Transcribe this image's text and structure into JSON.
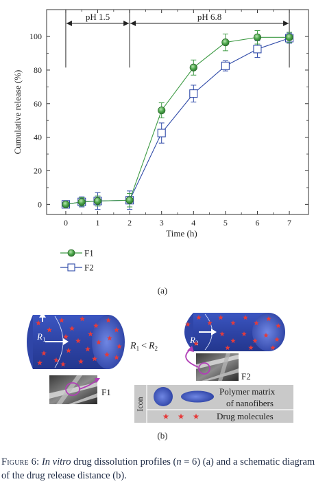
{
  "panel_a_label": "(a)",
  "panel_b_label": "(b)",
  "chart_data": {
    "type": "line",
    "title": "",
    "xlabel": "Time (h)",
    "ylabel": "Cumulative release (%)",
    "xlim": [
      -0.6,
      7.6
    ],
    "ylim": [
      -6,
      116
    ],
    "x_ticks": [
      "0",
      "1",
      "2",
      "3",
      "4",
      "5",
      "6",
      "7"
    ],
    "y_ticks": [
      "0",
      "20",
      "40",
      "60",
      "80",
      "100"
    ],
    "grid": false,
    "legend_position": "bottom-left",
    "phase_annotations": [
      {
        "label": "pH 1.5",
        "from": 0,
        "to": 2
      },
      {
        "label": "pH 6.8",
        "from": 2,
        "to": 7
      }
    ],
    "x": [
      0,
      0.5,
      1,
      2,
      3,
      4,
      5,
      6,
      7
    ],
    "series": [
      {
        "name": "F1",
        "marker": "circle",
        "color": "#3f9b45",
        "values": [
          0,
          1.5,
          2,
          2.5,
          56,
          81.5,
          96.5,
          99.5,
          99.5
        ],
        "errors": [
          1.2,
          2.5,
          3,
          4,
          4.5,
          4.5,
          5,
          4,
          3
        ]
      },
      {
        "name": "F2",
        "marker": "square",
        "color": "#2f4aa8",
        "values": [
          0,
          1.5,
          2,
          2.5,
          42.5,
          66,
          82.5,
          92.5,
          99
        ],
        "errors": [
          1.2,
          3,
          5,
          5.5,
          6,
          5,
          3,
          5,
          3
        ]
      }
    ]
  },
  "schematic": {
    "r1_label": "R",
    "r1_sub": "1",
    "r2_label": "R",
    "r2_sub": "2",
    "comparison_r1": "R",
    "comparison_r1_sub": "1",
    "comparison_op": "<",
    "comparison_r2": "R",
    "comparison_r2_sub": "2",
    "f1_label": "F1",
    "f2_label": "F2",
    "legend_icon_label": "Icon",
    "legend_matrix_line1": "Polymer matrix",
    "legend_matrix_line2": "of nanofibers",
    "legend_drug": "Drug molecules",
    "fiber_color": "#2e44a6",
    "drug_color": "#e53b3b"
  },
  "caption": {
    "lead": "Figure 6:",
    "italic": "In vitro",
    "text1": " drug dissolution profiles (",
    "n_var": "n",
    "text2": " = 6) (a) and a schematic diagram of the drug release distance (b)."
  }
}
